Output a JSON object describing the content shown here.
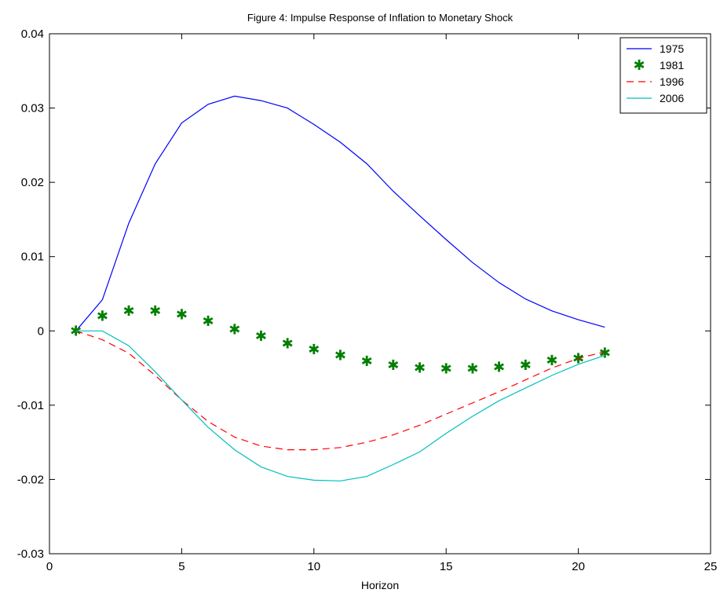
{
  "chart_data": {
    "type": "line",
    "title": "Figure 4: Impulse Response of Inflation to Monetary Shock",
    "xlabel": "Horizon",
    "ylabel": "",
    "xlim": [
      0,
      25
    ],
    "ylim": [
      -0.03,
      0.04
    ],
    "xticks": [
      0,
      5,
      10,
      15,
      20,
      25
    ],
    "xtick_labels": [
      "0",
      "5",
      "10",
      "15",
      "20",
      "25"
    ],
    "yticks": [
      -0.03,
      -0.02,
      -0.01,
      0,
      0.01,
      0.02,
      0.03,
      0.04
    ],
    "ytick_labels": [
      "-0.03",
      "-0.02",
      "-0.01",
      "0",
      "0.01",
      "0.02",
      "0.03",
      "0.04"
    ],
    "grid": false,
    "legend_position": "top-right",
    "x": [
      1,
      2,
      3,
      4,
      5,
      6,
      7,
      8,
      9,
      10,
      11,
      12,
      13,
      14,
      15,
      16,
      17,
      18,
      19,
      20,
      21
    ],
    "series": [
      {
        "name": "1975",
        "style": "solid",
        "color": "#0000ff",
        "values": [
          0.0,
          0.0042,
          0.0145,
          0.0225,
          0.028,
          0.0305,
          0.0316,
          0.031,
          0.03,
          0.0278,
          0.0254,
          0.0225,
          0.0188,
          0.0155,
          0.0123,
          0.0092,
          0.0065,
          0.0043,
          0.0027,
          0.0015,
          0.0005
        ]
      },
      {
        "name": "1981",
        "style": "star",
        "color": "#007f00",
        "values": [
          0.0,
          0.002,
          0.0027,
          0.0027,
          0.0022,
          0.0013,
          0.0002,
          -0.0007,
          -0.0017,
          -0.0025,
          -0.0033,
          -0.0041,
          -0.0046,
          -0.005,
          -0.0051,
          -0.0051,
          -0.0049,
          -0.0046,
          -0.004,
          -0.0037,
          -0.003
        ]
      },
      {
        "name": "1996",
        "style": "dashed",
        "color": "#ff0000",
        "values": [
          0.0,
          -0.0012,
          -0.003,
          -0.006,
          -0.0093,
          -0.0122,
          -0.0143,
          -0.0155,
          -0.016,
          -0.016,
          -0.0157,
          -0.015,
          -0.014,
          -0.0127,
          -0.0112,
          -0.0097,
          -0.0082,
          -0.0066,
          -0.005,
          -0.0037,
          -0.0028
        ]
      },
      {
        "name": "2006",
        "style": "solid",
        "color": "#00bfbf",
        "values": [
          0.0,
          0.0,
          -0.002,
          -0.0055,
          -0.0093,
          -0.013,
          -0.016,
          -0.0183,
          -0.0196,
          -0.0201,
          -0.0202,
          -0.0196,
          -0.018,
          -0.0163,
          -0.0138,
          -0.0115,
          -0.0094,
          -0.0077,
          -0.006,
          -0.0045,
          -0.0033
        ]
      }
    ]
  }
}
